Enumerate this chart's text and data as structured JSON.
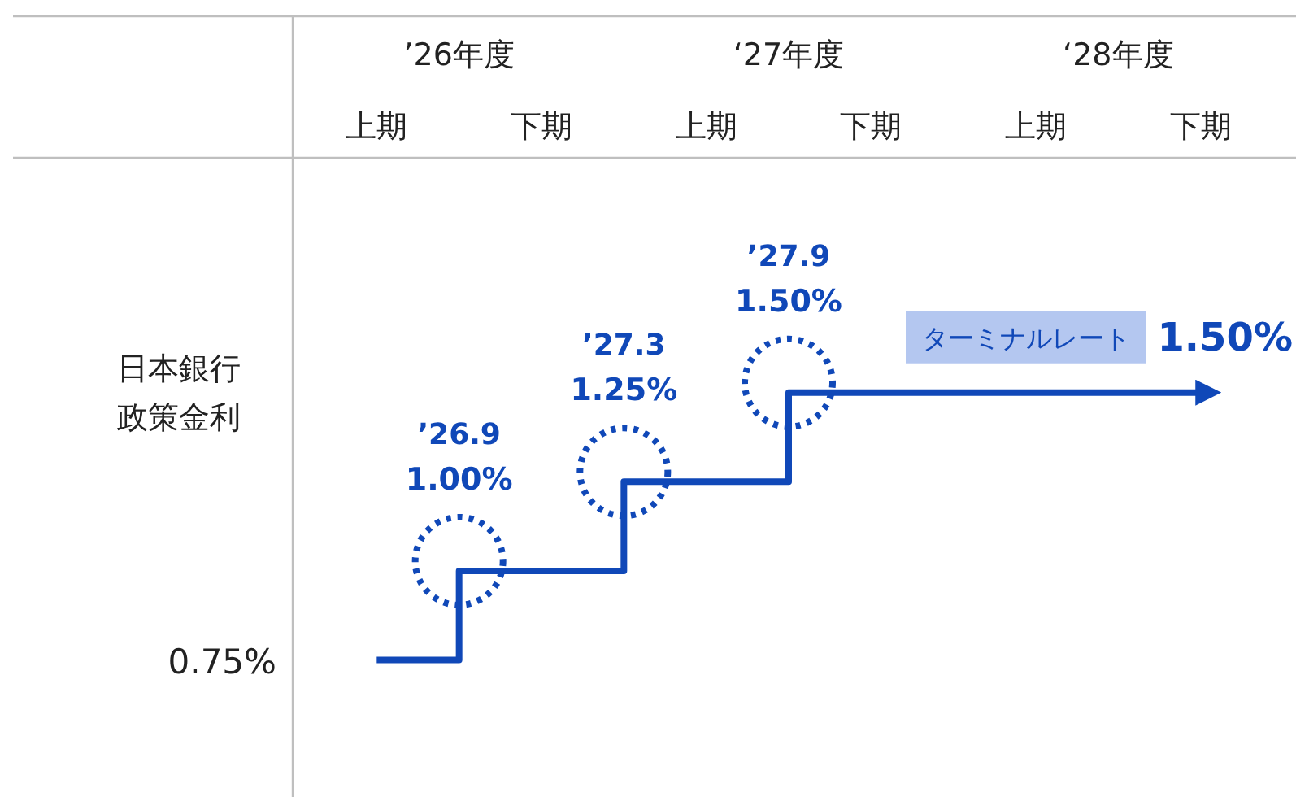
{
  "chart_data": {
    "type": "step",
    "categories": [
      "上期",
      "下期",
      "上期",
      "下期",
      "上期",
      "下期"
    ],
    "series": [
      {
        "color": "#1048b8",
        "values": [
          0.75,
          1.0,
          1.25,
          1.5,
          1.5,
          1.5
        ],
        "value_labels": [
          null,
          "1.00%",
          "1.25%",
          "1.50%",
          null,
          "1.50%"
        ]
      }
    ],
    "ylabel": "日本銀行政策金利",
    "annotations": [
      "’26年度",
      "‘27年度",
      "‘28年度",
      "’26.9",
      "’27.3",
      "’27.9",
      "ターミナルレート",
      {
        "text": "0.75%",
        "x": "上期",
        "y": 0.75
      }
    ]
  }
}
